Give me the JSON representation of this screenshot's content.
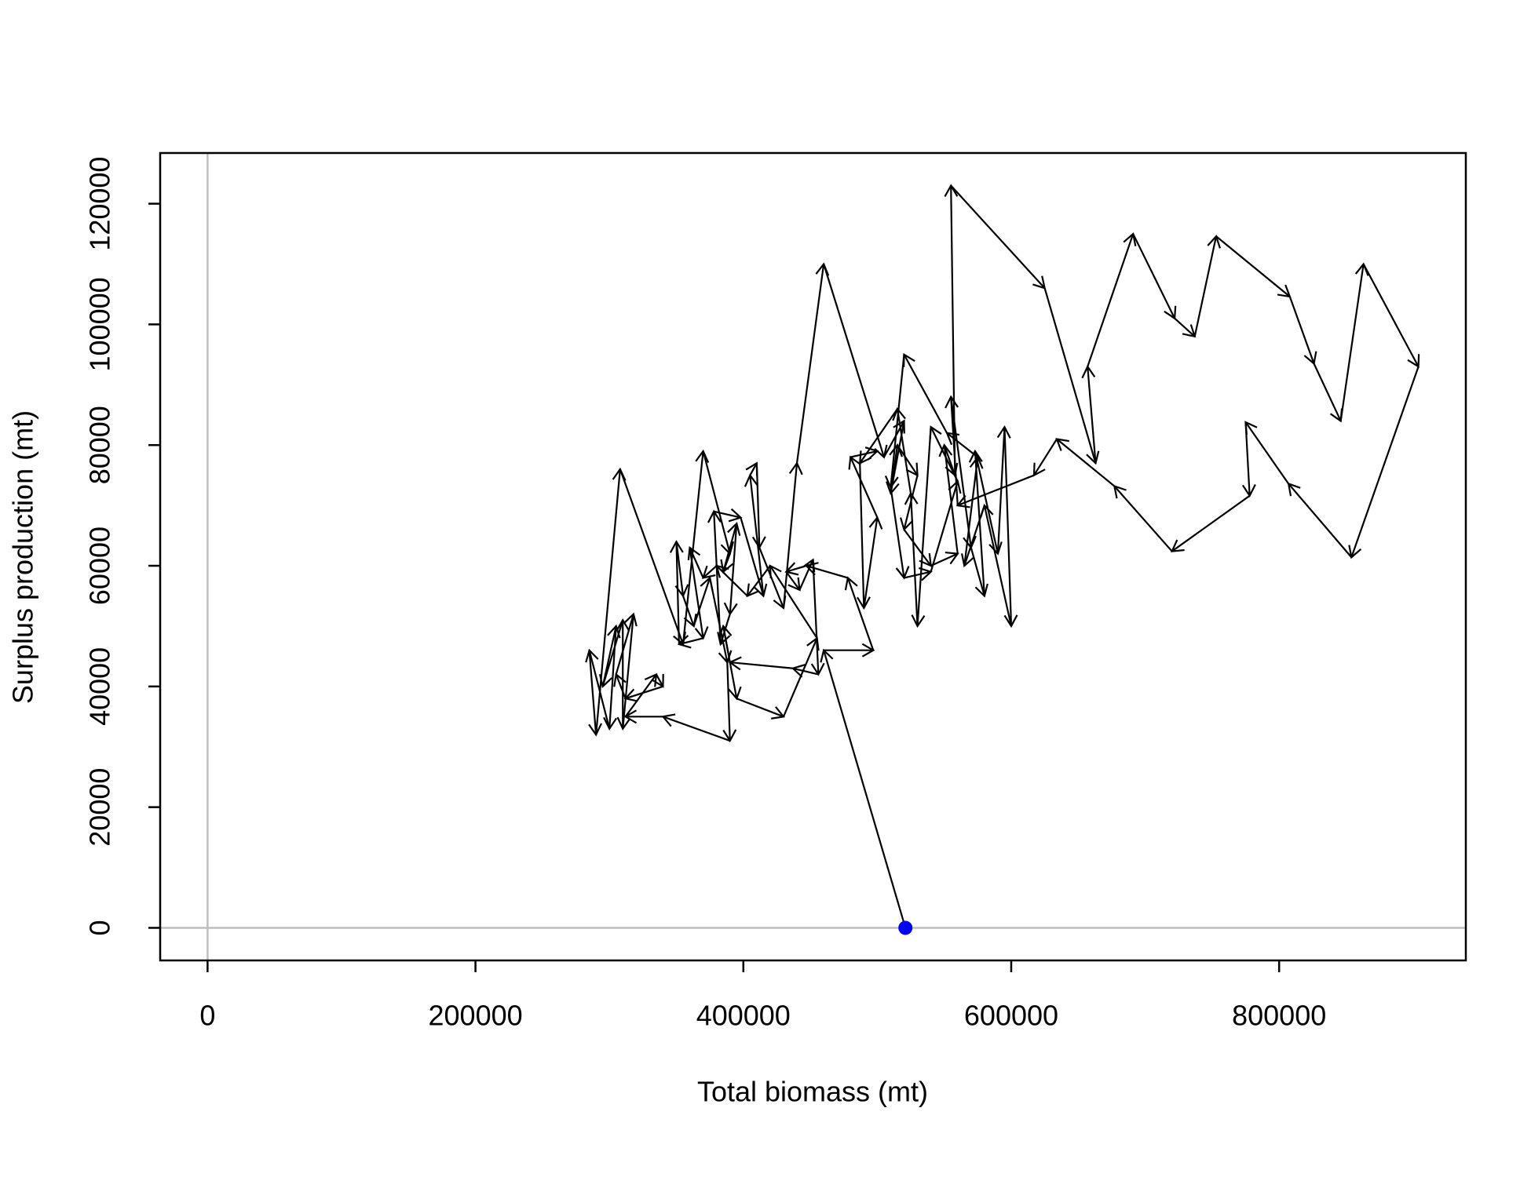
{
  "chart_data": {
    "type": "phase-arrows",
    "xlabel": "Total biomass (mt)",
    "ylabel": "Surplus production (mt)",
    "xlim": [
      -35400,
      939400
    ],
    "ylim": [
      -5400,
      128400
    ],
    "xticks": [
      0,
      200000,
      400000,
      600000,
      800000
    ],
    "yticks": [
      0,
      20000,
      40000,
      60000,
      80000,
      100000,
      120000
    ],
    "hlines": [
      0
    ],
    "vlines": [
      0
    ],
    "ref_line_color": "#bebebe",
    "color": "#000000",
    "start_color": "#0000ff",
    "x": [
      521000,
      460000,
      497000,
      478000,
      447000,
      432000,
      442000,
      452000,
      456000,
      437000,
      390000,
      385000,
      395000,
      430000,
      455000,
      420000,
      403000,
      380000,
      370000,
      360000,
      370000,
      352000,
      350000,
      355000,
      363000,
      375000,
      388000,
      390000,
      340000,
      312000,
      335000,
      340000,
      312000,
      305000,
      318000,
      310000,
      310000,
      295000,
      305000,
      300000,
      285000,
      290000,
      308000,
      355000,
      370000,
      390000,
      385000,
      395000,
      390000,
      383000,
      378000,
      398000,
      415000,
      405000,
      410000,
      412000,
      430000,
      440000,
      460000,
      505000,
      520000,
      510000,
      515000,
      530000,
      520000,
      540000,
      560000,
      550000,
      558000,
      555000,
      625000,
      663000,
      657000,
      691000,
      722000,
      737000,
      753000,
      808000,
      826000,
      846000,
      863000,
      904000,
      854000,
      807000,
      775000,
      778000,
      720000,
      677000,
      634000,
      617000,
      560000,
      555000,
      570000,
      580000,
      573000,
      590000,
      595000,
      600000,
      580000,
      565000,
      575000,
      552000,
      520000,
      510000,
      520000,
      540000,
      560000,
      540000,
      530000,
      525000,
      515000,
      487000,
      490000,
      500000,
      480000,
      500000
    ],
    "values": [
      0,
      46000,
      46000,
      58000,
      60000,
      59000,
      56000,
      61000,
      42000,
      43000,
      44000,
      50000,
      38000,
      35000,
      48000,
      60000,
      55000,
      60000,
      58000,
      63000,
      48000,
      47000,
      64000,
      55000,
      50000,
      58000,
      44000,
      31000,
      35000,
      35000,
      42000,
      40000,
      38000,
      42000,
      52000,
      33000,
      51000,
      40000,
      50000,
      33000,
      46000,
      32000,
      76000,
      47000,
      79000,
      62000,
      59000,
      67000,
      52000,
      47000,
      69000,
      68000,
      55000,
      75000,
      77000,
      63000,
      53000,
      77000,
      110000,
      78000,
      84000,
      72000,
      80000,
      75000,
      66000,
      60000,
      62000,
      80000,
      75000,
      123000,
      106000,
      77000,
      93000,
      115000,
      101000,
      98000,
      114600,
      104600,
      93500,
      84000,
      110000,
      93000,
      61400,
      73600,
      83800,
      71600,
      62400,
      73200,
      81000,
      75000,
      70000,
      88000,
      63000,
      55000,
      79000,
      62000,
      83000,
      50000,
      70000,
      60000,
      78000,
      82000,
      95000,
      73000,
      58000,
      59000,
      74000,
      83000,
      50000,
      72000,
      86000,
      77000,
      53000,
      68000,
      78000,
      79000
    ]
  }
}
